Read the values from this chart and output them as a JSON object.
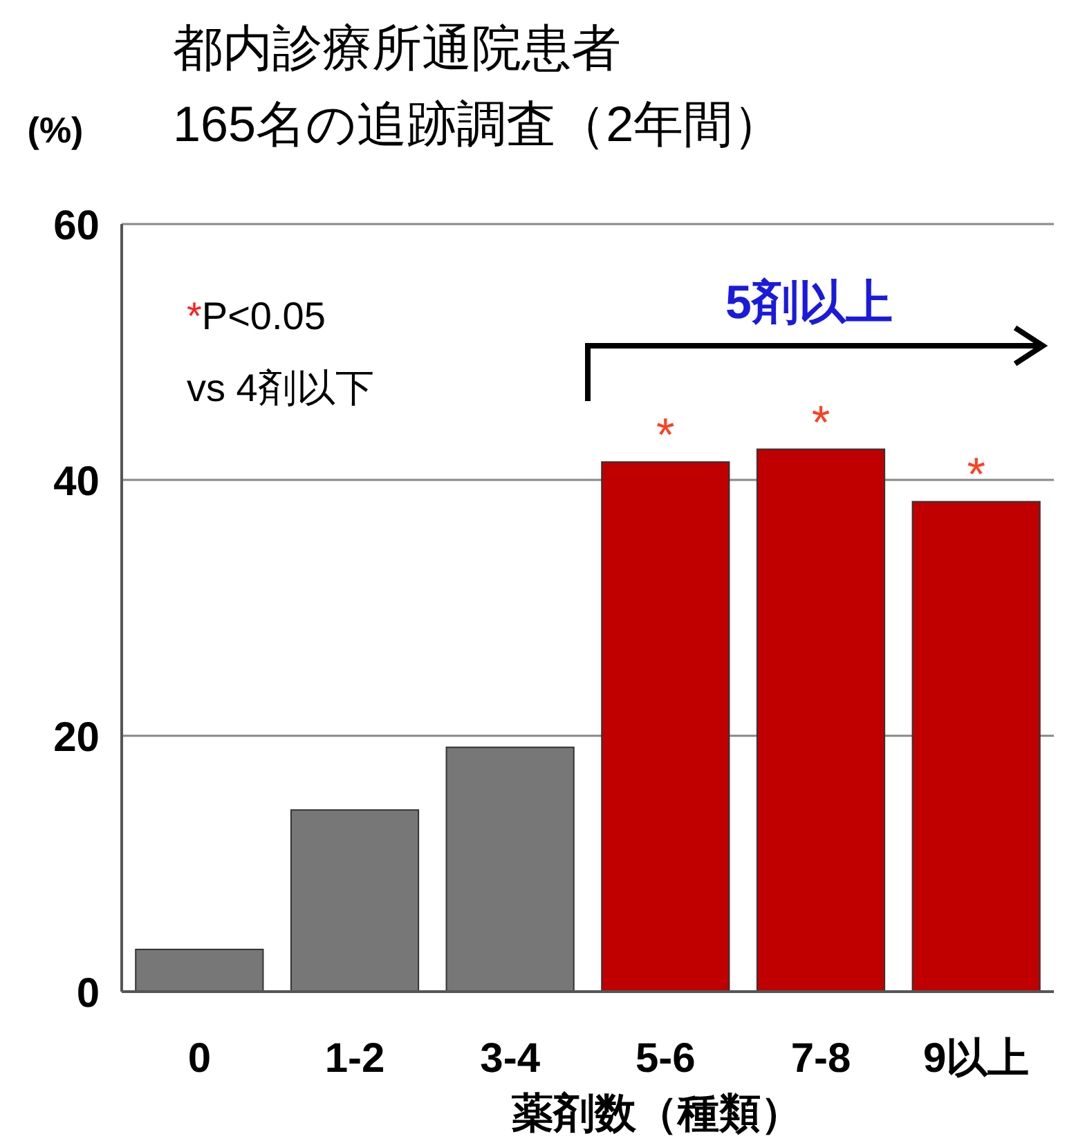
{
  "chart_data": {
    "type": "bar",
    "title": "都内診療所通院患者\n165名の追跡調査（2年間）",
    "ylabel": "(%)",
    "xlabel": "薬剤数（種類）",
    "categories": [
      "0",
      "1-2",
      "3-4",
      "5-6",
      "7-8",
      "9以上"
    ],
    "values": [
      3.3,
      14.2,
      19.1,
      41.4,
      42.4,
      38.3
    ],
    "colors": [
      "#777777",
      "#777777",
      "#777777",
      "#c00000",
      "#c00000",
      "#c00000"
    ],
    "ylim": [
      0,
      60
    ],
    "yticks": [
      0,
      20,
      40,
      60
    ],
    "grid": "y",
    "annotations": [
      "*P<0.05",
      "vs 4剤以下",
      "5剤以上",
      {
        "text": "*",
        "x": "5-6",
        "y": 41.4
      },
      {
        "text": "*",
        "x": "7-8",
        "y": 42.4
      },
      {
        "text": "*",
        "x": "9以上",
        "y": 38.3
      }
    ]
  }
}
